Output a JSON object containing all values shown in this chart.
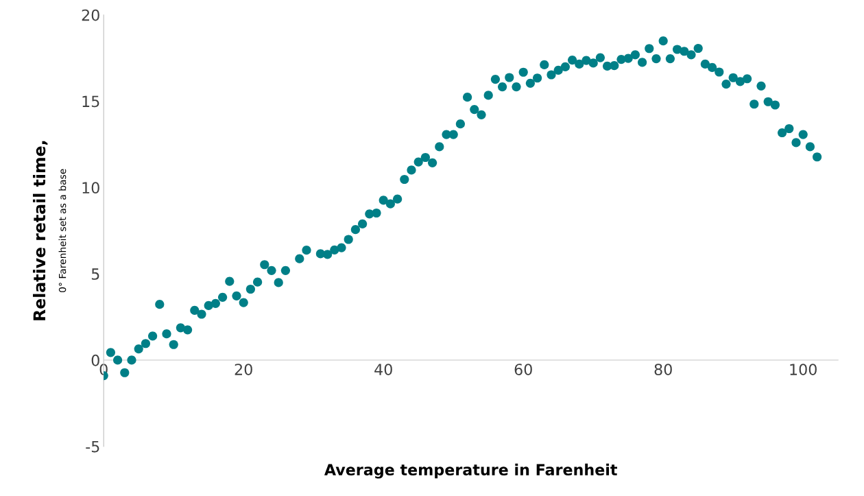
{
  "chart_data": {
    "type": "scatter",
    "xlabel": "Average temperature in Farenheit",
    "ylabel": "Relative retail time,",
    "annotations": [
      "0° Farenheit set as a base"
    ],
    "x": [
      0,
      1,
      2,
      3,
      4,
      5,
      6,
      7,
      8,
      9,
      10,
      11,
      12,
      13,
      14,
      15,
      16,
      17,
      18,
      19,
      20,
      21,
      22,
      23,
      24,
      25,
      26,
      28,
      29,
      31,
      32,
      33,
      34,
      35,
      36,
      37,
      38,
      39,
      40,
      41,
      42,
      43,
      44,
      45,
      46,
      47,
      48,
      49,
      50,
      51,
      52,
      53,
      54,
      55,
      56,
      57,
      58,
      59,
      60,
      61,
      62,
      63,
      64,
      65,
      66,
      67,
      68,
      69,
      70,
      71,
      72,
      73,
      74,
      75,
      76,
      77,
      78,
      79,
      80,
      81,
      82,
      83,
      84,
      85,
      86,
      87,
      88,
      89,
      90,
      91,
      92,
      93,
      94,
      95,
      96,
      97,
      98,
      99,
      100,
      101,
      102
    ],
    "series": [
      {
        "color": "#007f87",
        "values": [
          -0.9,
          0.44,
          0.0,
          -0.73,
          0.0,
          0.65,
          0.96,
          1.39,
          3.23,
          1.52,
          0.9,
          1.87,
          1.75,
          2.88,
          2.66,
          3.16,
          3.28,
          3.64,
          4.56,
          3.72,
          3.33,
          4.11,
          4.52,
          5.53,
          5.19,
          4.49,
          5.19,
          5.87,
          6.37,
          6.16,
          6.12,
          6.38,
          6.51,
          6.99,
          7.56,
          7.89,
          8.47,
          8.52,
          9.26,
          9.05,
          9.33,
          10.47,
          11.01,
          11.48,
          11.74,
          11.43,
          12.36,
          13.07,
          13.07,
          13.68,
          15.23,
          14.52,
          14.21,
          15.34,
          16.27,
          15.83,
          16.37,
          15.83,
          16.68,
          16.04,
          16.34,
          17.11,
          16.53,
          16.79,
          16.99,
          17.38,
          17.15,
          17.36,
          17.21,
          17.52,
          17.03,
          17.06,
          17.42,
          17.48,
          17.69,
          17.25,
          18.05,
          17.46,
          18.49,
          17.46,
          18.0,
          17.89,
          17.69,
          18.06,
          17.15,
          16.95,
          16.69,
          15.99,
          16.36,
          16.14,
          16.3,
          14.83,
          15.88,
          14.97,
          14.78,
          13.17,
          13.41,
          12.6,
          13.07,
          12.36,
          11.77
        ]
      }
    ],
    "xlim": [
      0,
      105
    ],
    "xticks": [
      0,
      20,
      40,
      60,
      80,
      100
    ],
    "ylim": [
      -5,
      20
    ],
    "yticks": [
      -5,
      0,
      5,
      10,
      15,
      20
    ],
    "marker": "circle",
    "grid": false,
    "legend": false
  }
}
